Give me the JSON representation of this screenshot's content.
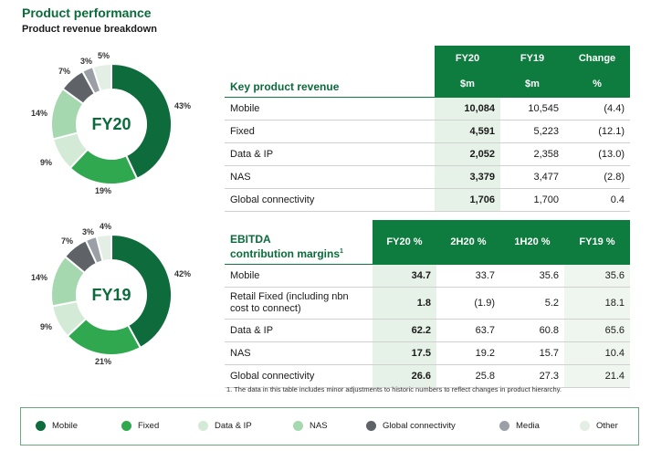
{
  "header": {
    "title": "Product performance",
    "subtitle": "Product revenue breakdown"
  },
  "colors": {
    "mobile": "#0e6b3b",
    "fixed": "#2fa84f",
    "data_ip": "#d3ebd6",
    "nas": "#a6d8b0",
    "global_connectivity": "#5f6368",
    "media": "#9aa0a6",
    "other": "#e3eee4"
  },
  "chart_data": [
    {
      "type": "pie",
      "center_label": "FY20",
      "slices": [
        {
          "name": "Mobile",
          "value": 43,
          "label": "43%"
        },
        {
          "name": "Fixed",
          "value": 19,
          "label": "19%"
        },
        {
          "name": "Data & IP",
          "value": 9,
          "label": "9%"
        },
        {
          "name": "NAS",
          "value": 14,
          "label": "14%"
        },
        {
          "name": "Global connectivity",
          "value": 7,
          "label": "7%"
        },
        {
          "name": "Media",
          "value": 3,
          "label": "3%"
        },
        {
          "name": "Other",
          "value": 5,
          "label": "5%"
        }
      ]
    },
    {
      "type": "pie",
      "center_label": "FY19",
      "slices": [
        {
          "name": "Mobile",
          "value": 42,
          "label": "42%"
        },
        {
          "name": "Fixed",
          "value": 21,
          "label": "21%"
        },
        {
          "name": "Data & IP",
          "value": 9,
          "label": "9%"
        },
        {
          "name": "NAS",
          "value": 14,
          "label": "14%"
        },
        {
          "name": "Global connectivity",
          "value": 7,
          "label": "7%"
        },
        {
          "name": "Media",
          "value": 3,
          "label": "3%"
        },
        {
          "name": "Other",
          "value": 4,
          "label": "4%"
        }
      ]
    }
  ],
  "revenue_table": {
    "title": "Key product revenue",
    "col_fy20": "FY20",
    "col_fy19": "FY19",
    "col_change": "Change",
    "unit_fy20": "$m",
    "unit_fy19": "$m",
    "unit_change": "%",
    "rows": [
      {
        "label": "Mobile",
        "fy20": "10,084",
        "fy19": "10,545",
        "change": "(4.4)"
      },
      {
        "label": "Fixed",
        "fy20": "4,591",
        "fy19": "5,223",
        "change": "(12.1)"
      },
      {
        "label": "Data & IP",
        "fy20": "2,052",
        "fy19": "2,358",
        "change": "(13.0)"
      },
      {
        "label": "NAS",
        "fy20": "3,379",
        "fy19": "3,477",
        "change": "(2.8)"
      },
      {
        "label": "Global connectivity",
        "fy20": "1,706",
        "fy19": "1,700",
        "change": "0.4"
      }
    ]
  },
  "ebitda_table": {
    "title_line1": "EBITDA",
    "title_line2": "contribution margins",
    "title_sup": "1",
    "col_fy20": "FY20 %",
    "col_2h20": "2H20 %",
    "col_1h20": "1H20 %",
    "col_fy19": "FY19 %",
    "rows": [
      {
        "label": "Mobile",
        "fy20": "34.7",
        "h2": "33.7",
        "h1": "35.6",
        "fy19": "35.6"
      },
      {
        "label": "Retail Fixed (including nbn cost to connect)",
        "fy20": "1.8",
        "h2": "(1.9)",
        "h1": "5.2",
        "fy19": "18.1"
      },
      {
        "label": "Data & IP",
        "fy20": "62.2",
        "h2": "63.7",
        "h1": "60.8",
        "fy19": "65.6"
      },
      {
        "label": "NAS",
        "fy20": "17.5",
        "h2": "19.2",
        "h1": "15.7",
        "fy19": "10.4"
      },
      {
        "label": "Global connectivity",
        "fy20": "26.6",
        "h2": "25.8",
        "h1": "27.3",
        "fy19": "21.4"
      }
    ],
    "footnote": "1. The data in this table includes minor adjustments to historic numbers to reflect changes in product hierarchy."
  },
  "legend": {
    "items": [
      {
        "label": "Mobile",
        "color": "#0e6b3b"
      },
      {
        "label": "Fixed",
        "color": "#2fa84f"
      },
      {
        "label": "Data & IP",
        "color": "#d3ebd6"
      },
      {
        "label": "NAS",
        "color": "#a6d8b0"
      },
      {
        "label": "Global connectivity",
        "color": "#5f6368"
      },
      {
        "label": "Media",
        "color": "#9aa0a6"
      },
      {
        "label": "Other",
        "color": "#e3eee4"
      }
    ]
  }
}
